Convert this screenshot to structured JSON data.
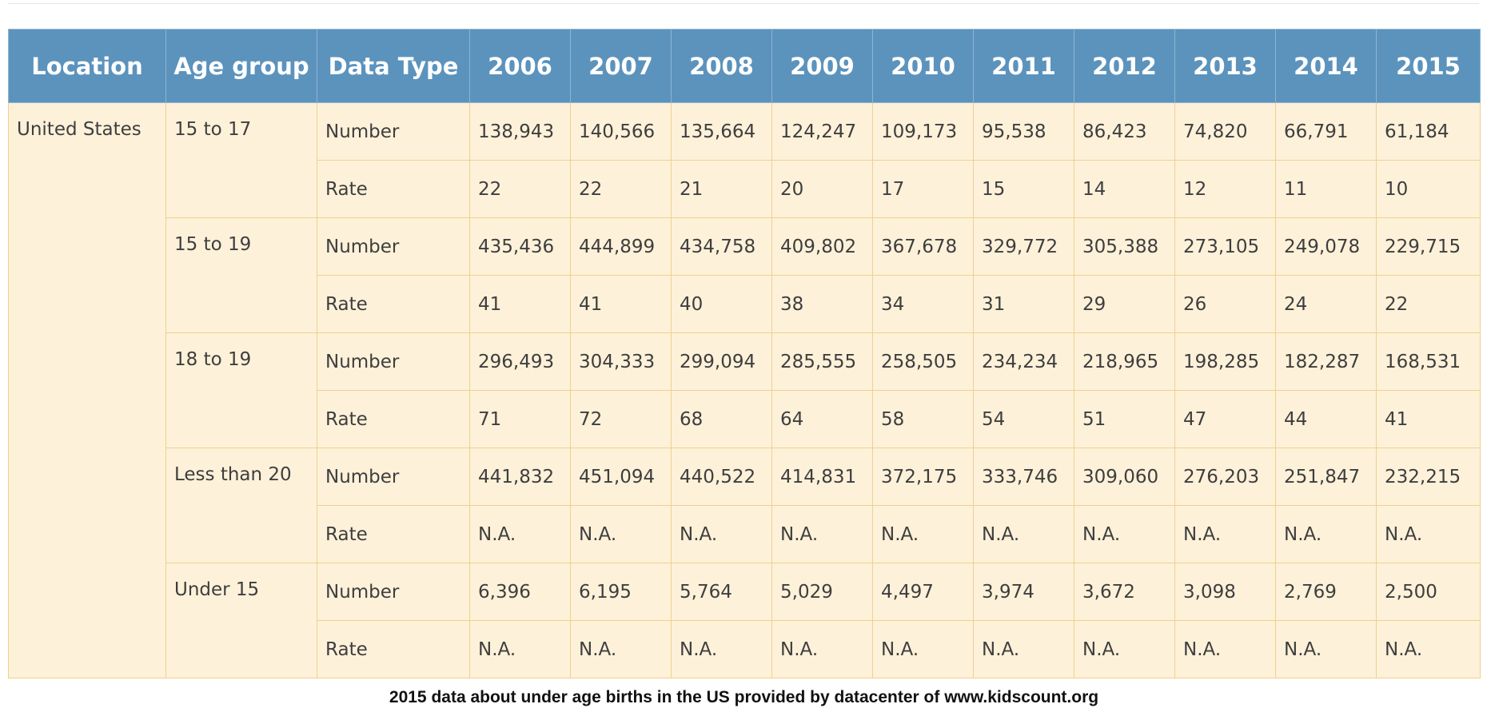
{
  "table": {
    "headers": [
      "Location",
      "Age group",
      "Data Type",
      "2006",
      "2007",
      "2008",
      "2009",
      "2010",
      "2011",
      "2012",
      "2013",
      "2014",
      "2015"
    ],
    "location": "United States",
    "groups": [
      {
        "age_group": "15 to 17",
        "rows": [
          {
            "type": "Number",
            "values": [
              "138,943",
              "140,566",
              "135,664",
              "124,247",
              "109,173",
              "95,538",
              "86,423",
              "74,820",
              "66,791",
              "61,184"
            ]
          },
          {
            "type": "Rate",
            "values": [
              "22",
              "22",
              "21",
              "20",
              "17",
              "15",
              "14",
              "12",
              "11",
              "10"
            ]
          }
        ]
      },
      {
        "age_group": "15 to 19",
        "rows": [
          {
            "type": "Number",
            "values": [
              "435,436",
              "444,899",
              "434,758",
              "409,802",
              "367,678",
              "329,772",
              "305,388",
              "273,105",
              "249,078",
              "229,715"
            ]
          },
          {
            "type": "Rate",
            "values": [
              "41",
              "41",
              "40",
              "38",
              "34",
              "31",
              "29",
              "26",
              "24",
              "22"
            ]
          }
        ]
      },
      {
        "age_group": "18 to 19",
        "rows": [
          {
            "type": "Number",
            "values": [
              "296,493",
              "304,333",
              "299,094",
              "285,555",
              "258,505",
              "234,234",
              "218,965",
              "198,285",
              "182,287",
              "168,531"
            ]
          },
          {
            "type": "Rate",
            "values": [
              "71",
              "72",
              "68",
              "64",
              "58",
              "54",
              "51",
              "47",
              "44",
              "41"
            ]
          }
        ]
      },
      {
        "age_group": "Less than 20",
        "rows": [
          {
            "type": "Number",
            "values": [
              "441,832",
              "451,094",
              "440,522",
              "414,831",
              "372,175",
              "333,746",
              "309,060",
              "276,203",
              "251,847",
              "232,215"
            ]
          },
          {
            "type": "Rate",
            "values": [
              "N.A.",
              "N.A.",
              "N.A.",
              "N.A.",
              "N.A.",
              "N.A.",
              "N.A.",
              "N.A.",
              "N.A.",
              "N.A."
            ]
          }
        ]
      },
      {
        "age_group": "Under 15",
        "rows": [
          {
            "type": "Number",
            "values": [
              "6,396",
              "6,195",
              "5,764",
              "5,029",
              "4,497",
              "3,974",
              "3,672",
              "3,098",
              "2,769",
              "2,500"
            ]
          },
          {
            "type": "Rate",
            "values": [
              "N.A.",
              "N.A.",
              "N.A.",
              "N.A.",
              "N.A.",
              "N.A.",
              "N.A.",
              "N.A.",
              "N.A.",
              "N.A."
            ]
          }
        ]
      }
    ]
  },
  "caption": "2015 data about under age births in the US provided by datacenter of www.kidscount.org",
  "colors": {
    "header_bg": "#5b93bd",
    "cell_bg": "#fef1d9",
    "border": "#ecd28e"
  }
}
